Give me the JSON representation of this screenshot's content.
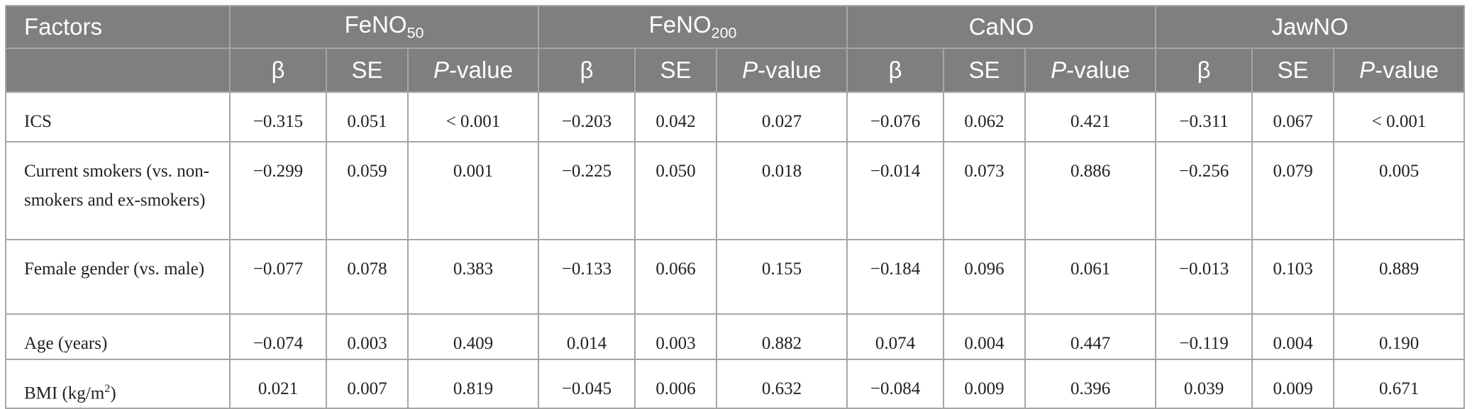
{
  "table": {
    "corner": "Factors",
    "groups": [
      {
        "title": {
          "text": "FeNO",
          "sub": "50"
        },
        "columns": [
          "β",
          "SE",
          {
            "italic": "P",
            "text": "-value"
          }
        ]
      },
      {
        "title": {
          "text": "FeNO",
          "sub": "200"
        },
        "columns": [
          "β",
          "SE",
          {
            "italic": "P",
            "text": "-value"
          }
        ]
      },
      {
        "title": {
          "text": "CaNO"
        },
        "columns": [
          "β",
          "SE",
          {
            "italic": "P",
            "text": "-value"
          }
        ]
      },
      {
        "title": {
          "text": "JawNO"
        },
        "columns": [
          "β",
          "SE",
          {
            "italic": "P",
            "text": "-value"
          }
        ]
      }
    ],
    "rows": [
      {
        "factor": {
          "text": "ICS"
        },
        "values": [
          "−0.315",
          "0.051",
          "< 0.001",
          "−0.203",
          "0.042",
          "0.027",
          "−0.076",
          "0.062",
          "0.421",
          "−0.311",
          "0.067",
          "< 0.001"
        ]
      },
      {
        "factor": {
          "text": "Current smokers (vs. non-smokers and ex-smokers)"
        },
        "values": [
          "−0.299",
          "0.059",
          "0.001",
          "−0.225",
          "0.050",
          "0.018",
          "−0.014",
          "0.073",
          "0.886",
          "−0.256",
          "0.079",
          "0.005"
        ]
      },
      {
        "factor": {
          "text": "Female gender (vs. male)"
        },
        "values": [
          "−0.077",
          "0.078",
          "0.383",
          "−0.133",
          "0.066",
          "0.155",
          "−0.184",
          "0.096",
          "0.061",
          "−0.013",
          "0.103",
          "0.889"
        ]
      },
      {
        "factor": {
          "text": "Age (years)"
        },
        "values": [
          "−0.074",
          "0.003",
          "0.409",
          "0.014",
          "0.003",
          "0.882",
          "0.074",
          "0.004",
          "0.447",
          "−0.119",
          "0.004",
          "0.190"
        ]
      },
      {
        "factor": {
          "text": "BMI (kg/m",
          "sup": "2",
          "tail": ")"
        },
        "values": [
          "0.021",
          "0.007",
          "0.819",
          "−0.045",
          "0.006",
          "0.632",
          "−0.084",
          "0.009",
          "0.396",
          "0.039",
          "0.009",
          "0.671"
        ]
      }
    ]
  }
}
